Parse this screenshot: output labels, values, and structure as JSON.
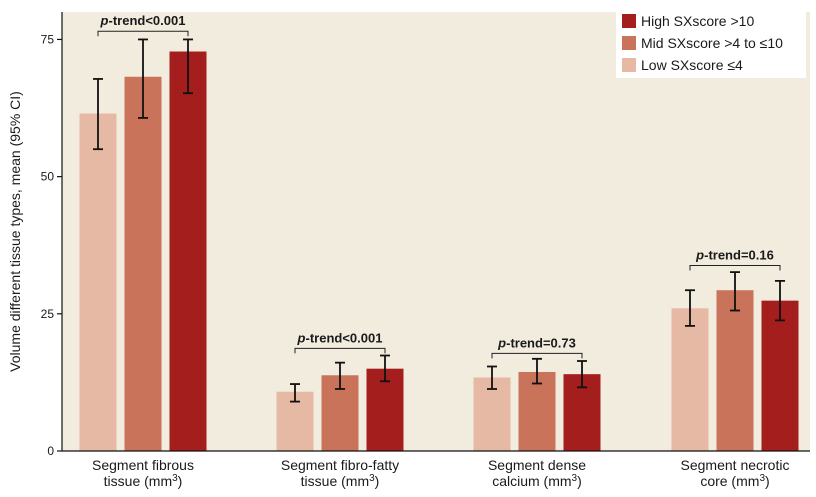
{
  "chart_data": {
    "type": "bar",
    "ylabel": "Volume different tissue types, mean (95% CI)",
    "ylim": [
      0,
      80
    ],
    "yticks": [
      0,
      25,
      50,
      75
    ],
    "plot_background": "#f1ecdd",
    "categories": [
      {
        "line1": "Segment fibrous",
        "line2_base": "tissue (mm",
        "line2_sup": "3",
        "line2_end": ")"
      },
      {
        "line1": "Segment fibro-fatty",
        "line2_base": "tissue (mm",
        "line2_sup": "3",
        "line2_end": ")"
      },
      {
        "line1": "Segment dense",
        "line2_base": "calcium (mm",
        "line2_sup": "3",
        "line2_end": ")"
      },
      {
        "line1": "Segment necrotic",
        "line2_base": "core (mm",
        "line2_sup": "3",
        "line2_end": ")"
      }
    ],
    "series": [
      {
        "name": "Low SXscore ≤4",
        "color": "#e6b9a5",
        "values": [
          61.5,
          10.8,
          13.4,
          26.0
        ],
        "ci_low": [
          55.0,
          9.0,
          11.3,
          22.8
        ],
        "ci_high": [
          67.8,
          12.2,
          15.4,
          29.3
        ]
      },
      {
        "name": "Mid SXscore >4 to ≤10",
        "color": "#c8735a",
        "values": [
          68.2,
          13.8,
          14.4,
          29.3
        ],
        "ci_low": [
          60.7,
          11.3,
          12.3,
          25.6
        ],
        "ci_high": [
          75.0,
          16.1,
          16.8,
          32.6
        ]
      },
      {
        "name": "High SXscore >10",
        "color": "#a41e1e",
        "values": [
          72.8,
          15.0,
          14.0,
          27.4
        ],
        "ci_low": [
          65.2,
          12.7,
          11.6,
          23.8
        ],
        "ci_high": [
          75.0,
          17.4,
          16.4,
          31.0
        ]
      }
    ],
    "legend": {
      "position": "top-right",
      "order": [
        2,
        1,
        0
      ]
    },
    "annotations": [
      {
        "group": 0,
        "p": "p",
        "rest": "-trend<0.001",
        "bracket_y": 76.5
      },
      {
        "group": 1,
        "p": "p",
        "rest": "-trend<0.001",
        "bracket_y": 18.7
      },
      {
        "group": 2,
        "p": "p",
        "rest": "-trend=0.73",
        "bracket_y": 17.8
      },
      {
        "group": 3,
        "p": "p",
        "rest": "-trend=0.16",
        "bracket_y": 33.8
      }
    ]
  }
}
